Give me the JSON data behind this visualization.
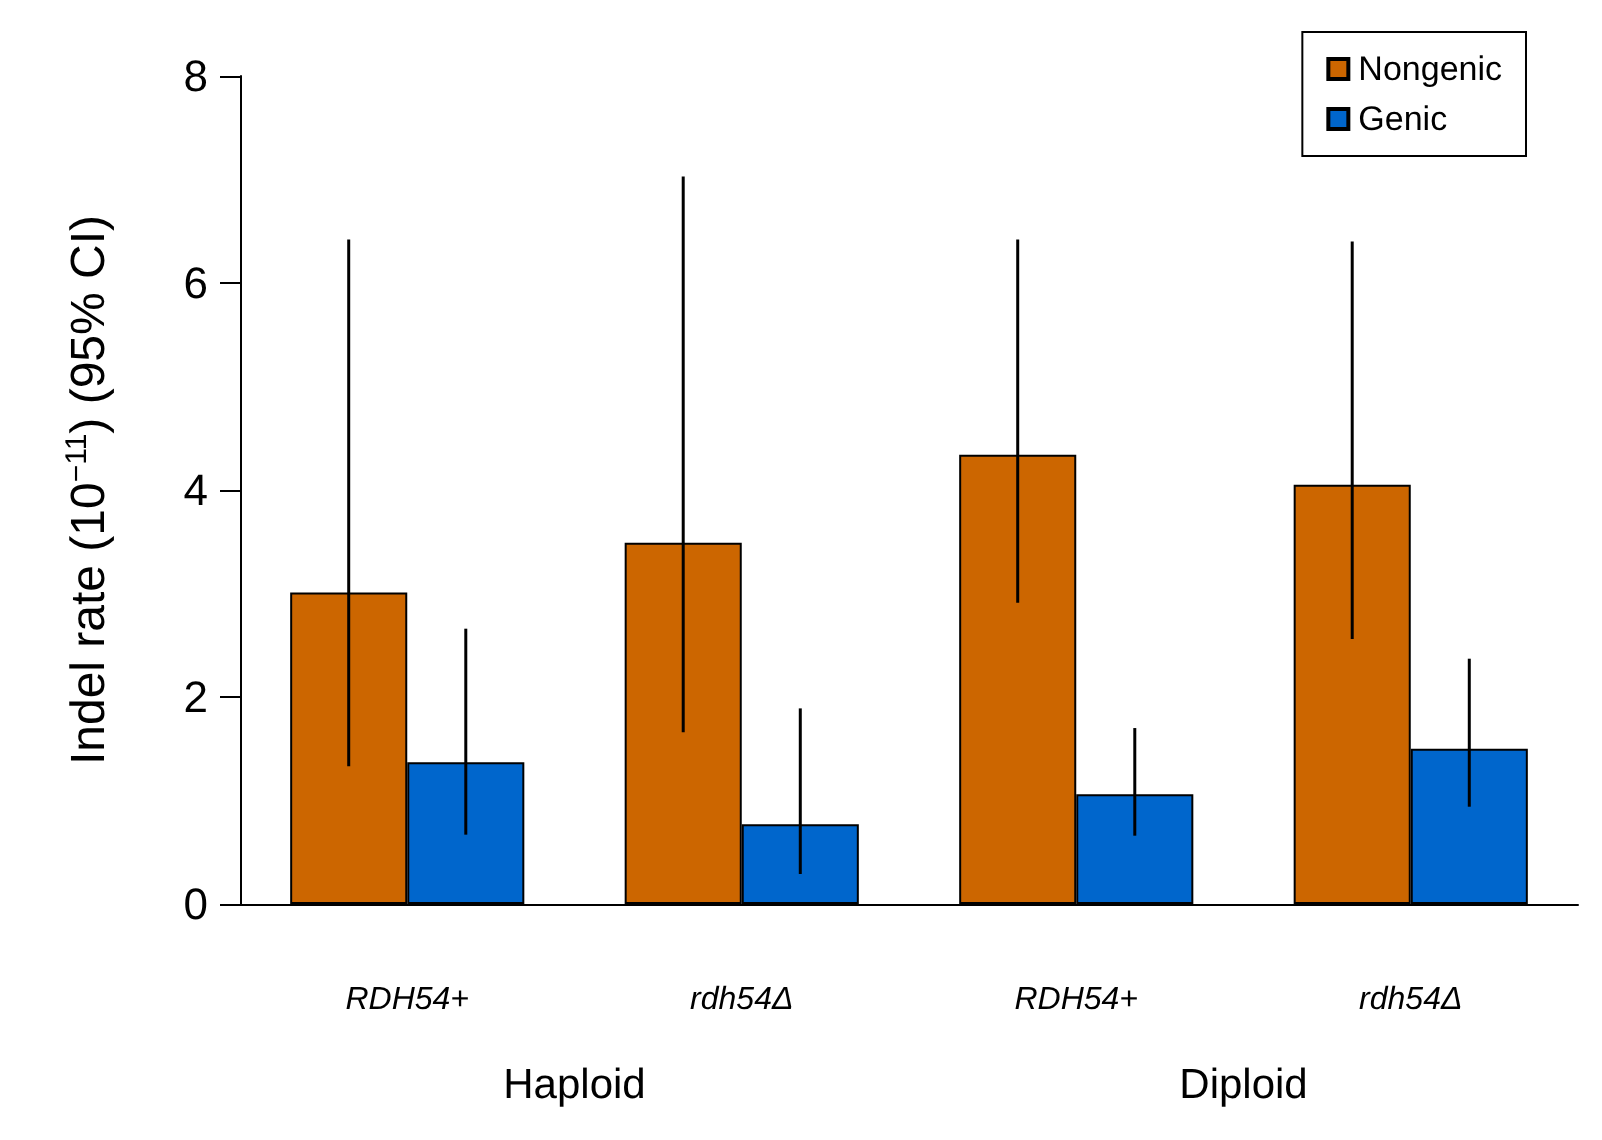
{
  "chart_data": {
    "type": "bar",
    "ylabel": "Indel rate (10$^{−11}$) (95% CI)",
    "categories": [
      "RDH54+",
      "rdh54Δ",
      "RDH54+",
      "rdh54Δ"
    ],
    "annotations": [
      "Haploid",
      "Diploid"
    ],
    "series": [
      {
        "name": "Nongenic",
        "color": "#cc6600",
        "values": [
          3.01,
          3.49,
          4.34,
          4.05
        ],
        "errors": [
          [
            1.33,
            6.42
          ],
          [
            1.66,
            7.03
          ],
          [
            2.91,
            6.42
          ],
          [
            2.56,
            6.4
          ]
        ]
      },
      {
        "name": "Genic",
        "color": "#0066cc",
        "values": [
          1.37,
          0.77,
          1.06,
          1.5
        ],
        "errors": [
          [
            0.67,
            2.66
          ],
          [
            0.29,
            1.89
          ],
          [
            0.66,
            1.7
          ],
          [
            0.94,
            2.37
          ]
        ]
      }
    ],
    "ylim": [
      0,
      8
    ],
    "yticks": [
      0,
      2,
      4,
      6,
      8
    ],
    "grid": false,
    "legend": "top right"
  }
}
